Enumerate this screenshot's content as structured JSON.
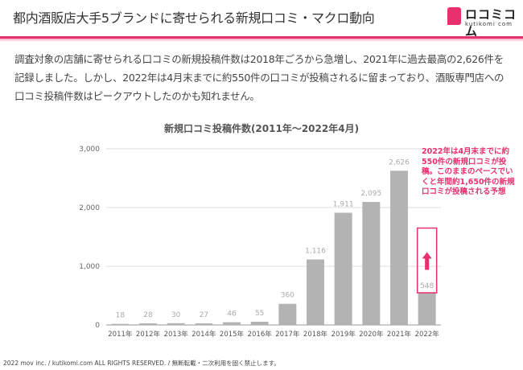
{
  "header": {
    "title": "都内酒販店大手5ブランドに寄せられる新規口コミ・マクロ動向",
    "logo_text": "ロコミコム",
    "logo_sub": "kutikomi com",
    "accent": "#e8306f"
  },
  "body": {
    "paragraph": "調査対象の店舗に寄せられる口コミの新規投稿件数は2018年ごろから急増し、2021年に過去最高の2,626件を記録しました。しかし、2022年は4月末までに約550件の口コミが投稿されるに留まっており、酒販専門店への口コミ投稿件数はピークアウトしたのかも知れません。"
  },
  "chart_data": {
    "type": "bar",
    "title": "新規口コミ投稿件数(2011年～2022年4月)",
    "categories": [
      "2011年",
      "2012年",
      "2013年",
      "2014年",
      "2015年",
      "2016年",
      "2017年",
      "2018年",
      "2019年",
      "2020年",
      "2021年",
      "2022年"
    ],
    "values": [
      18,
      28,
      30,
      27,
      46,
      55,
      360,
      1116,
      1911,
      2095,
      2626,
      548
    ],
    "data_labels": [
      "18",
      "28",
      "30",
      "27",
      "46",
      "55",
      "360",
      "1,116",
      "1,911",
      "2,095",
      "2,626",
      "548"
    ],
    "ylim": [
      0,
      3000
    ],
    "yticks": [
      0,
      1000,
      2000,
      3000
    ],
    "ytick_labels": [
      "0",
      "1,000",
      "2,000",
      "3,000"
    ],
    "grid": true,
    "bar_color": "#b3b3b3",
    "projection": {
      "category": "2022年",
      "value": 1650,
      "color": "#e8306f"
    },
    "annotation": "2022年は4月末までに約550件の新規口コミが投稿。このままのペースでいくと年間約1,650件の新規口コミが投稿される予想"
  },
  "footer": {
    "text": "2022 mov inc. / kutikomi.com ALL RIGHTS RESERVED. / 無断転載・二次利用を固く禁止します。"
  }
}
